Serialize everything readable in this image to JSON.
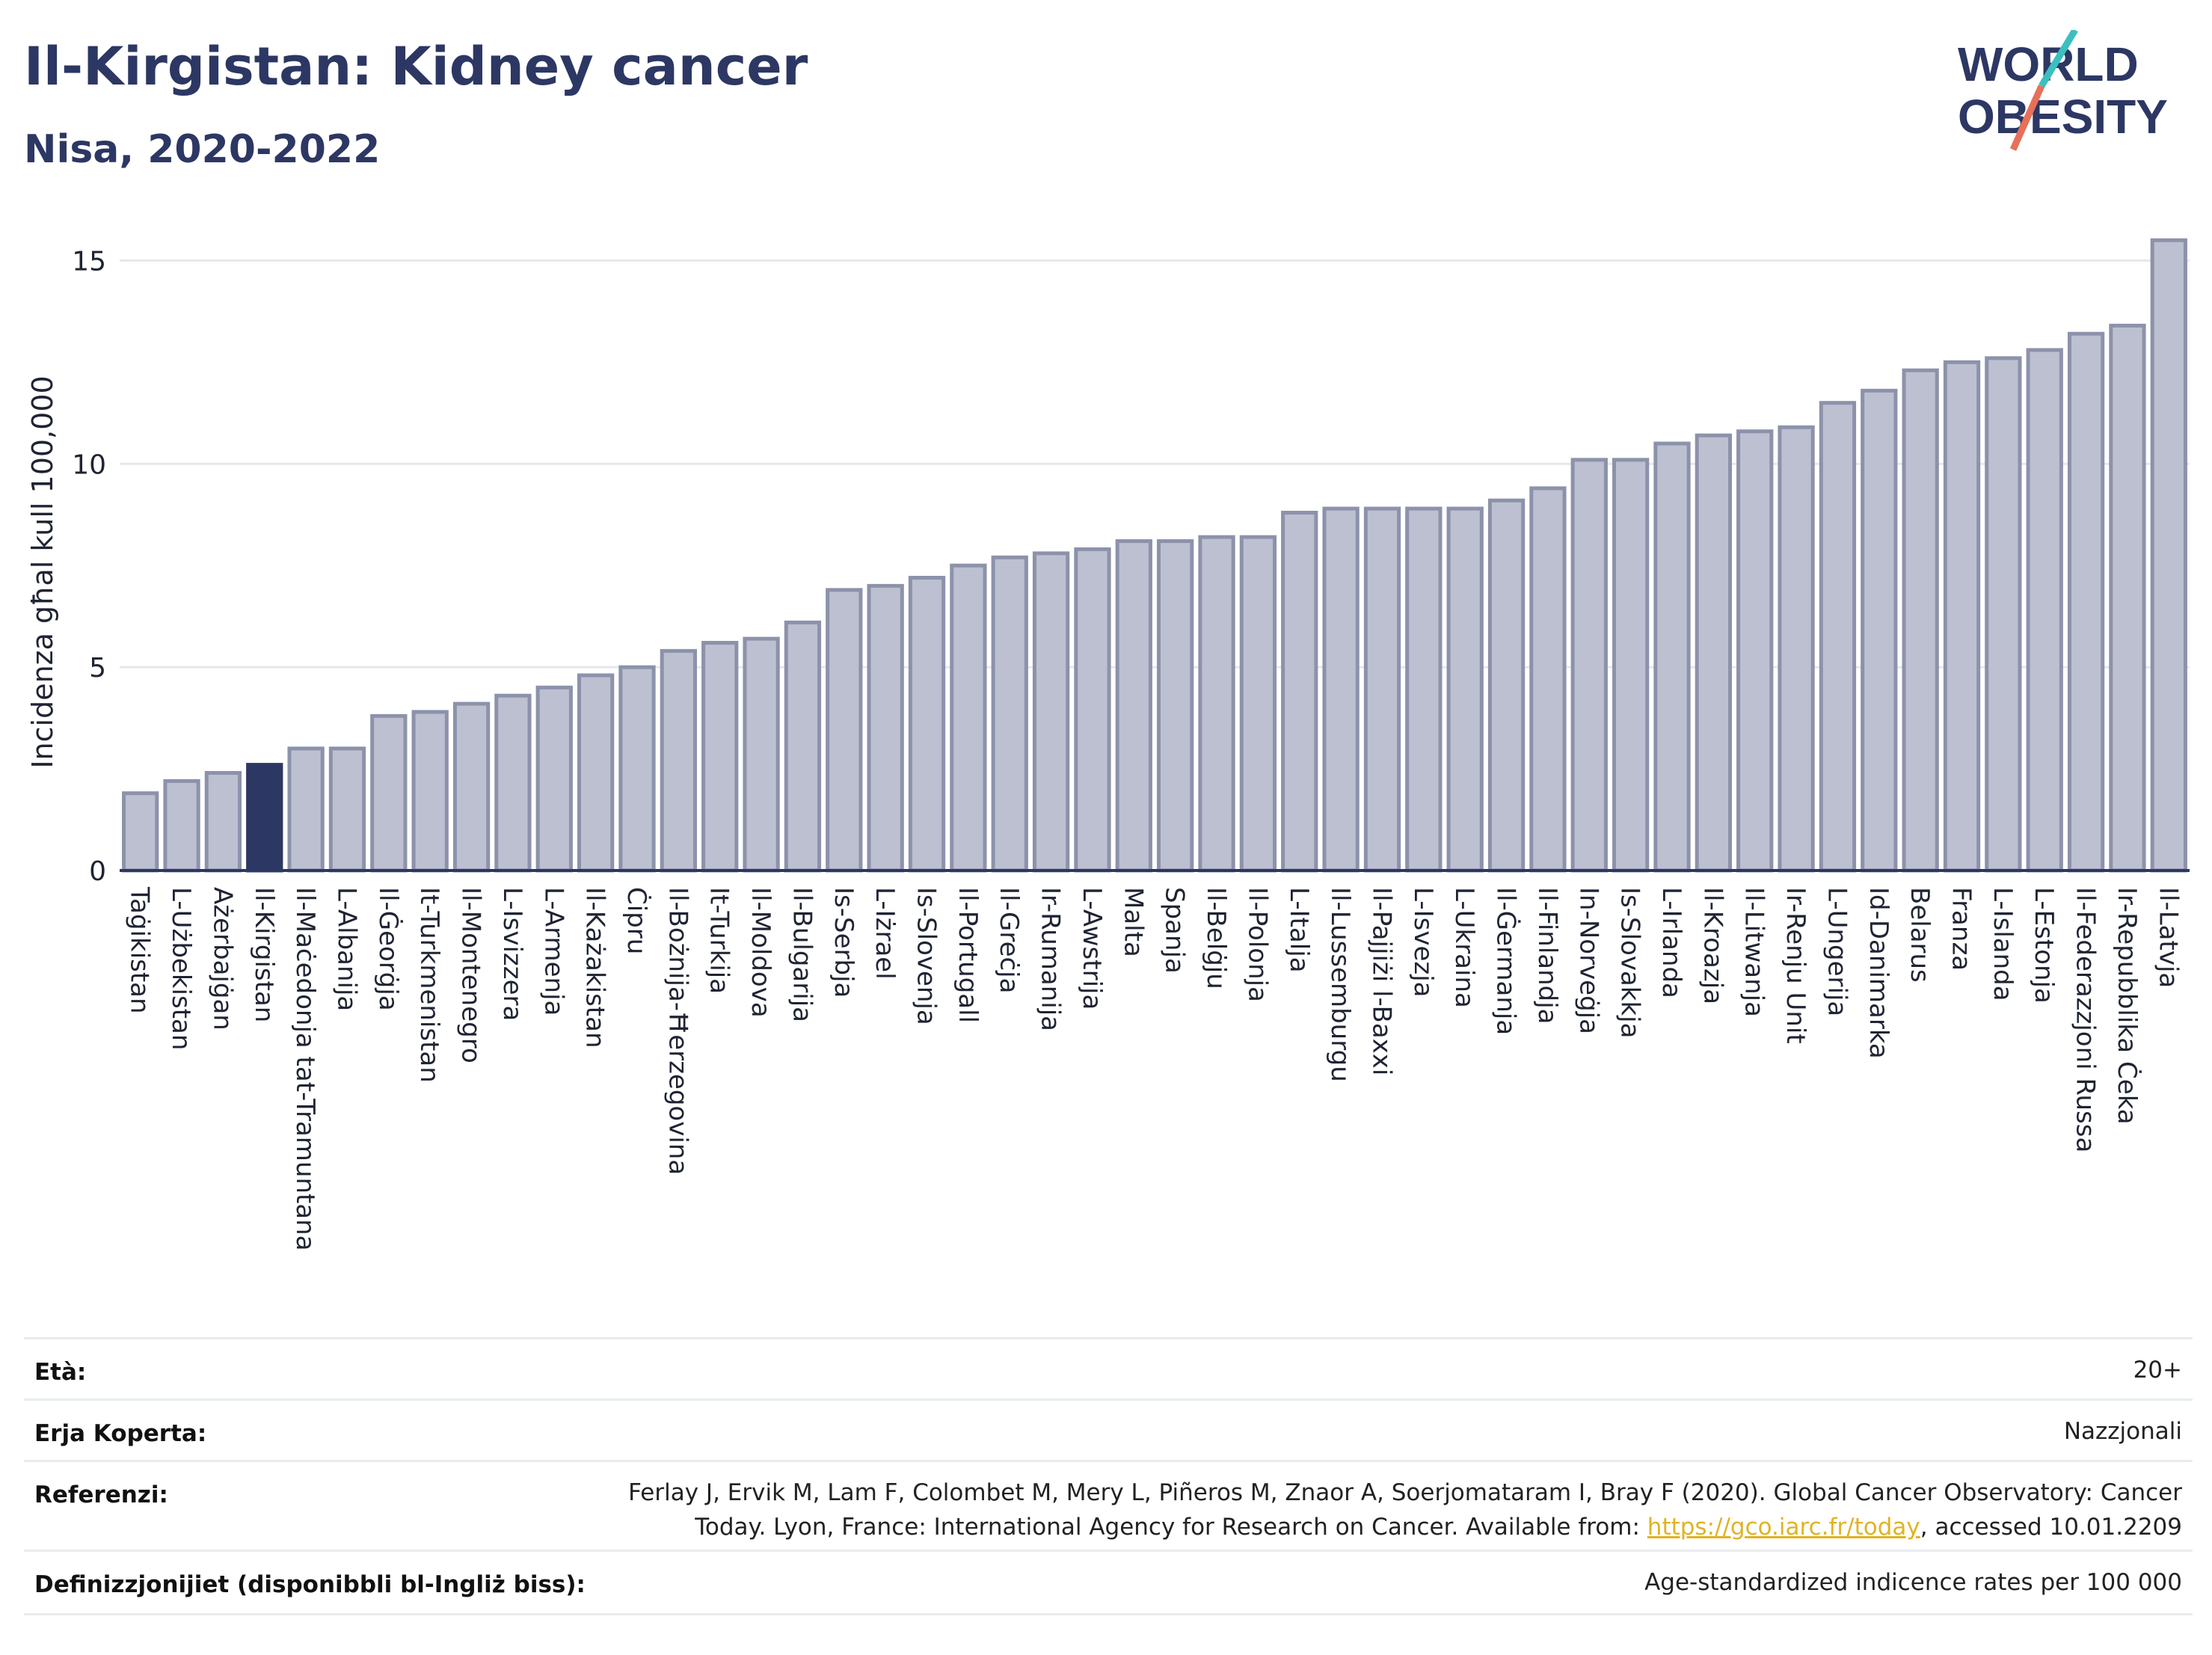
{
  "header": {
    "title": "Il-Kirgistan: Kidney cancer",
    "subtitle": "Nisa, 2020-2022",
    "logo_line1": "WORLD",
    "logo_line2": "OBESITY"
  },
  "colors": {
    "bar": "#bcc0d0",
    "bar_edge": "#8c92aa",
    "highlight": "#2c3763",
    "title": "#2c3763",
    "link": "#e0b325",
    "logo_slash_top": "#3bbfbf",
    "logo_slash_bottom": "#e8705a"
  },
  "chart_data": {
    "type": "bar",
    "ylabel": "Incidenza għal kull 100,000",
    "xlabel": "",
    "ylim": [
      0,
      16
    ],
    "yticks": [
      0,
      5,
      10,
      15
    ],
    "grid": true,
    "highlight": "Il-Kirgistan",
    "categories": [
      "Taġikistan",
      "L-Użbekistan",
      "Ażerbajġan",
      "Il-Kirgistan",
      "Il-Maċedonja tat-Tramuntana",
      "L-Albanija",
      "Il-Ġeorġja",
      "It-Turkmenistan",
      "Il-Montenegro",
      "L-Isvizzera",
      "L-Armenja",
      "Il-Każakistan",
      "Ċipru",
      "Il-Bożnija-Ħerzegovina",
      "It-Turkija",
      "Il-Moldova",
      "Il-Bulgarija",
      "Is-Serbja",
      "L-Iżrael",
      "Is-Slovenja",
      "Il-Portugall",
      "Il-Greċja",
      "Ir-Rumanija",
      "L-Awstrija",
      "Malta",
      "Spanja",
      "Il-Belġju",
      "Il-Polonja",
      "L-Italja",
      "Il-Lussemburgu",
      "Il-Pajjiżi l-Baxxi",
      "L-Isvezja",
      "L-Ukraina",
      "Il-Ġermanja",
      "Il-Finlandja",
      "In-Norveġja",
      "Is-Slovakkja",
      "L-Irlanda",
      "Il-Kroazja",
      "Il-Litwanja",
      "Ir-Renju Unit",
      "L-Ungerija",
      "Id-Danimarka",
      "Belarus",
      "Franza",
      "L-Islanda",
      "L-Estonja",
      "Il-Federazzjoni Russa",
      "Ir-Repubblika Ċeka",
      "Il-Latvja"
    ],
    "values": [
      1.9,
      2.2,
      2.4,
      2.6,
      3.0,
      3.0,
      3.8,
      3.9,
      4.1,
      4.3,
      4.5,
      4.8,
      5.0,
      5.4,
      5.6,
      5.7,
      6.1,
      6.9,
      7.0,
      7.2,
      7.5,
      7.7,
      7.8,
      7.9,
      8.1,
      8.1,
      8.2,
      8.2,
      8.8,
      8.9,
      8.9,
      8.9,
      8.9,
      9.1,
      9.4,
      10.1,
      10.1,
      10.5,
      10.7,
      10.8,
      10.9,
      11.5,
      11.8,
      12.3,
      12.5,
      12.6,
      12.8,
      13.2,
      13.4,
      15.5
    ]
  },
  "meta": {
    "age_label": "Età:",
    "age_value": "20+",
    "coverage_label": "Erja Koperta:",
    "coverage_value": "Nazzjonali",
    "reference_label": "Referenzi:",
    "reference_line1": "Ferlay J, Ervik M, Lam F, Colombet M, Mery L, Piñeros M, Znaor A, Soerjomataram I, Bray F (2020). Global Cancer Observatory: Cancer",
    "reference_line2_pre": "Today. Lyon, France: International Agency for Research on Cancer. Available from: ",
    "reference_link": "https://gco.iarc.fr/today",
    "reference_line2_post": ", accessed 10.01.2209",
    "definition_label": "Definizzjonijiet (disponibbli bl-Ingliż biss):",
    "definition_value": "Age-standardized indicence rates per 100 000"
  }
}
